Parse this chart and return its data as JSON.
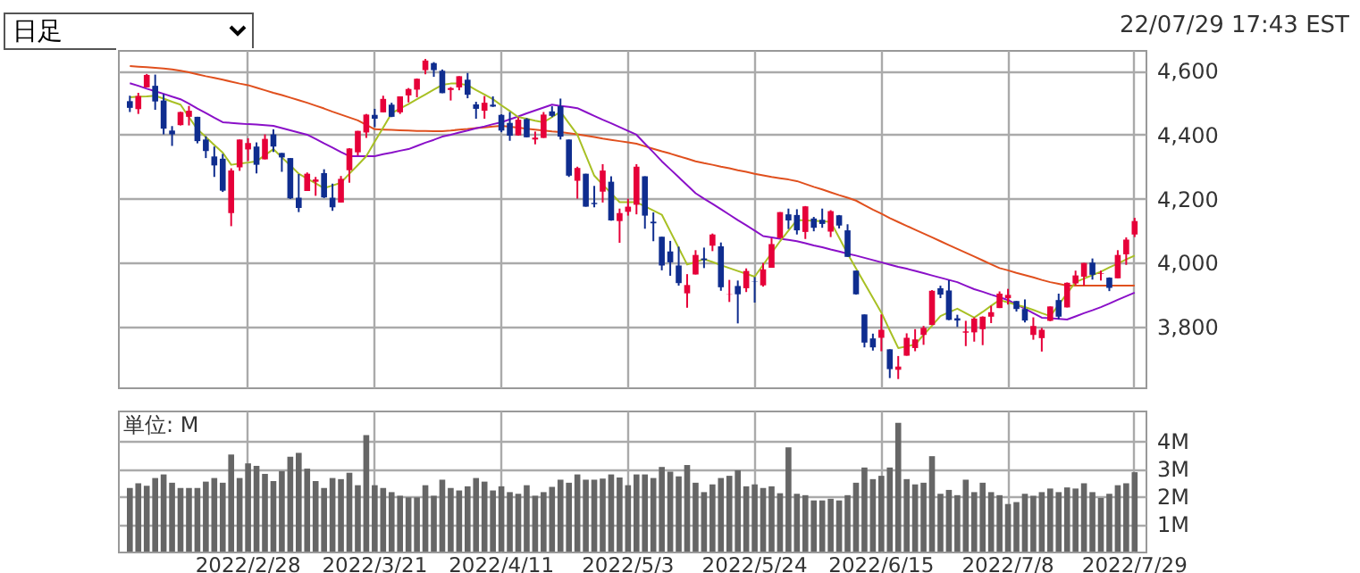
{
  "chart_data": [
    {
      "type": "candlestick",
      "categories": [
        null,
        null,
        null,
        null,
        null,
        null,
        null,
        null,
        null,
        null,
        null,
        null,
        null,
        null,
        "2022/2/28",
        null,
        null,
        null,
        null,
        null,
        null,
        null,
        null,
        null,
        null,
        null,
        null,
        null,
        null,
        "2022/3/21",
        null,
        null,
        null,
        null,
        null,
        null,
        null,
        null,
        null,
        null,
        null,
        null,
        null,
        null,
        "2022/4/11",
        null,
        null,
        null,
        null,
        null,
        null,
        null,
        null,
        null,
        null,
        null,
        null,
        null,
        null,
        "2022/5/3",
        null,
        null,
        null,
        null,
        null,
        null,
        null,
        null,
        null,
        null,
        null,
        null,
        null,
        null,
        "2022/5/24",
        null,
        null,
        null,
        null,
        null,
        null,
        null,
        null,
        null,
        null,
        null,
        null,
        null,
        null,
        "2022/6/15",
        null,
        null,
        null,
        null,
        null,
        null,
        null,
        null,
        null,
        null,
        null,
        null,
        null,
        null,
        "2022/7/8",
        null,
        null,
        null,
        null,
        null,
        null,
        null,
        null,
        null,
        null,
        null,
        null,
        null,
        null,
        "2022/7/29"
      ],
      "ohlc": [
        [
          4505,
          4522,
          4471,
          4484
        ],
        [
          4480,
          4531,
          4465,
          4521
        ],
        [
          4548,
          4590,
          4548,
          4587
        ],
        [
          4553,
          4588,
          4478,
          4504
        ],
        [
          4507,
          4527,
          4401,
          4419
        ],
        [
          4413,
          4427,
          4365,
          4401
        ],
        [
          4430,
          4472,
          4429,
          4471
        ],
        [
          4456,
          4490,
          4429,
          4475
        ],
        [
          4456,
          4456,
          4373,
          4380
        ],
        [
          4385,
          4395,
          4327,
          4349
        ],
        [
          4332,
          4363,
          4268,
          4304
        ],
        [
          4325,
          4340,
          4221,
          4225
        ],
        [
          4155,
          4295,
          4114,
          4288
        ],
        [
          4298,
          4385,
          4287,
          4385
        ],
        [
          4354,
          4389,
          4318,
          4374
        ],
        [
          4363,
          4376,
          4279,
          4306
        ],
        [
          4323,
          4401,
          4323,
          4387
        ],
        [
          4401,
          4417,
          4346,
          4363
        ],
        [
          4343,
          4343,
          4284,
          4329
        ],
        [
          4327,
          4327,
          4199,
          4201
        ],
        [
          4203,
          4277,
          4158,
          4171
        ],
        [
          4224,
          4282,
          4224,
          4278
        ],
        [
          4253,
          4268,
          4209,
          4260
        ],
        [
          4280,
          4292,
          4202,
          4204
        ],
        [
          4203,
          4247,
          4162,
          4173
        ],
        [
          4188,
          4271,
          4188,
          4262
        ],
        [
          4289,
          4358,
          4250,
          4357
        ],
        [
          4345,
          4412,
          4335,
          4412
        ],
        [
          4407,
          4465,
          4390,
          4463
        ],
        [
          4462,
          4481,
          4424,
          4450
        ],
        [
          4470,
          4522,
          4470,
          4512
        ],
        [
          4494,
          4500,
          4455,
          4456
        ],
        [
          4470,
          4520,
          4465,
          4520
        ],
        [
          4523,
          4546,
          4501,
          4543
        ],
        [
          4541,
          4576,
          4517,
          4575
        ],
        [
          4602,
          4637,
          4589,
          4632
        ],
        [
          4624,
          4627,
          4581,
          4602
        ],
        [
          4600,
          4604,
          4530,
          4530
        ],
        [
          4540,
          4549,
          4507,
          4546
        ],
        [
          4548,
          4583,
          4539,
          4583
        ],
        [
          4572,
          4593,
          4514,
          4525
        ],
        [
          4495,
          4503,
          4450,
          4481
        ],
        [
          4475,
          4521,
          4450,
          4500
        ],
        [
          4494,
          4520,
          4487,
          4488
        ],
        [
          4462,
          4464,
          4408,
          4413
        ],
        [
          4437,
          4471,
          4381,
          4397
        ],
        [
          4398,
          4454,
          4397,
          4447
        ],
        [
          4449,
          4452,
          4392,
          4392
        ],
        [
          4385,
          4410,
          4370,
          4391
        ],
        [
          4390,
          4471,
          4390,
          4463
        ],
        [
          4473,
          4489,
          4455,
          4459
        ],
        [
          4489,
          4513,
          4385,
          4394
        ],
        [
          4385,
          4385,
          4268,
          4272
        ],
        [
          4256,
          4300,
          4200,
          4296
        ],
        [
          4278,
          4278,
          4175,
          4175
        ],
        [
          4187,
          4240,
          4173,
          4183
        ],
        [
          4222,
          4308,
          4188,
          4288
        ],
        [
          4253,
          4270,
          4131,
          4132
        ],
        [
          4130,
          4169,
          4062,
          4155
        ],
        [
          4159,
          4200,
          4147,
          4175
        ],
        [
          4181,
          4308,
          4151,
          4300
        ],
        [
          4270,
          4270,
          4106,
          4147
        ],
        [
          4128,
          4157,
          4067,
          4123
        ],
        [
          4081,
          4081,
          3976,
          3991
        ],
        [
          4035,
          4068,
          3959,
          4001
        ],
        [
          3991,
          4050,
          3928,
          3936
        ],
        [
          3904,
          3964,
          3859,
          3930
        ],
        [
          3963,
          4039,
          3963,
          4024
        ],
        [
          4013,
          4047,
          3983,
          4008
        ],
        [
          4053,
          4091,
          4036,
          4088
        ],
        [
          4051,
          4063,
          3912,
          3923
        ],
        [
          3900,
          3946,
          3877,
          3901
        ],
        [
          3927,
          3944,
          3810,
          3901
        ],
        [
          3920,
          3982,
          3908,
          3974
        ],
        [
          3942,
          3955,
          3875,
          3941
        ],
        [
          3929,
          3999,
          3925,
          3979
        ],
        [
          3984,
          4076,
          3984,
          4058
        ],
        [
          4077,
          4158,
          4077,
          4158
        ],
        [
          4151,
          4169,
          4105,
          4132
        ],
        [
          4149,
          4167,
          4088,
          4101
        ],
        [
          4096,
          4177,
          4074,
          4176
        ],
        [
          4138,
          4143,
          4098,
          4109
        ],
        [
          4134,
          4169,
          4109,
          4121
        ],
        [
          4097,
          4164,
          4080,
          4161
        ],
        [
          4148,
          4149,
          4107,
          4116
        ],
        [
          4101,
          4120,
          4018,
          4018
        ],
        [
          3975,
          3975,
          3900,
          3901
        ],
        [
          3838,
          3838,
          3735,
          3750
        ],
        [
          3763,
          3778,
          3725,
          3735
        ],
        [
          3765,
          3838,
          3723,
          3790
        ],
        [
          3729,
          3729,
          3639,
          3667
        ],
        [
          3665,
          3708,
          3636,
          3675
        ],
        [
          3709,
          3779,
          3709,
          3765
        ],
        [
          3733,
          3792,
          3723,
          3760
        ],
        [
          3774,
          3802,
          3743,
          3796
        ],
        [
          3805,
          3914,
          3805,
          3912
        ],
        [
          3920,
          3928,
          3889,
          3900
        ],
        [
          3913,
          3945,
          3820,
          3821
        ],
        [
          3826,
          3837,
          3799,
          3819
        ],
        [
          3781,
          3818,
          3739,
          3785
        ],
        [
          3782,
          3829,
          3753,
          3825
        ],
        [
          3792,
          3832,
          3742,
          3831
        ],
        [
          3831,
          3865,
          3811,
          3845
        ],
        [
          3858,
          3910,
          3858,
          3903
        ],
        [
          3889,
          3918,
          3869,
          3899
        ],
        [
          3880,
          3880,
          3847,
          3855
        ],
        [
          3855,
          3885,
          3813,
          3819
        ],
        [
          3774,
          3829,
          3759,
          3802
        ],
        [
          3764,
          3796,
          3722,
          3790
        ],
        [
          3818,
          3863,
          3817,
          3863
        ],
        [
          3883,
          3903,
          3823,
          3831
        ],
        [
          3860,
          3938,
          3860,
          3937
        ],
        [
          3935,
          3975,
          3930,
          3960
        ],
        [
          3956,
          3999,
          3928,
          3999
        ],
        [
          4000,
          4013,
          3947,
          3962
        ],
        [
          3965,
          3975,
          3944,
          3967
        ],
        [
          3953,
          3954,
          3911,
          3921
        ],
        [
          3951,
          4039,
          3951,
          4024
        ],
        [
          4026,
          4079,
          3993,
          4072
        ],
        [
          4088,
          4140,
          4080,
          4130
        ]
      ],
      "colors": [
        "#0f2d8f",
        "#e60039",
        "#e60039",
        "#0f2d8f",
        "#0f2d8f",
        "#0f2d8f",
        "#e60039",
        "#e60039",
        "#0f2d8f",
        "#0f2d8f",
        "#0f2d8f",
        "#0f2d8f",
        "#e60039",
        "#e60039",
        "#e60039",
        "#0f2d8f",
        "#e60039",
        "#0f2d8f",
        "#0f2d8f",
        "#0f2d8f",
        "#0f2d8f",
        "#e60039",
        "#e60039",
        "#0f2d8f",
        "#0f2d8f",
        "#e60039",
        "#e60039",
        "#e60039",
        "#e60039",
        "#0f2d8f",
        "#e60039",
        "#0f2d8f",
        "#e60039",
        "#e60039",
        "#e60039",
        "#e60039",
        "#0f2d8f",
        "#0f2d8f",
        "#e60039",
        "#e60039",
        "#0f2d8f",
        "#0f2d8f",
        "#e60039",
        "#0f2d8f",
        "#0f2d8f",
        "#0f2d8f",
        "#e60039",
        "#0f2d8f",
        "#e60039",
        "#e60039",
        "#0f2d8f",
        "#0f2d8f",
        "#0f2d8f",
        "#e60039",
        "#0f2d8f",
        "#0f2d8f",
        "#e60039",
        "#0f2d8f",
        "#e60039",
        "#e60039",
        "#e60039",
        "#0f2d8f",
        "#0f2d8f",
        "#0f2d8f",
        "#0f2d8f",
        "#0f2d8f",
        "#e60039",
        "#e60039",
        "#0f2d8f",
        "#e60039",
        "#0f2d8f",
        "#e60039",
        "#0f2d8f",
        "#e60039",
        "#0f2d8f",
        "#e60039",
        "#e60039",
        "#e60039",
        "#0f2d8f",
        "#0f2d8f",
        "#e60039",
        "#0f2d8f",
        "#0f2d8f",
        "#e60039",
        "#0f2d8f",
        "#0f2d8f",
        "#0f2d8f",
        "#0f2d8f",
        "#0f2d8f",
        "#e60039",
        "#0f2d8f",
        "#e60039",
        "#e60039",
        "#e60039",
        "#e60039",
        "#e60039",
        "#0f2d8f",
        "#0f2d8f",
        "#0f2d8f",
        "#e60039",
        "#e60039",
        "#e60039",
        "#e60039",
        "#e60039",
        "#e60039",
        "#0f2d8f",
        "#0f2d8f",
        "#e60039",
        "#e60039",
        "#e60039",
        "#0f2d8f",
        "#e60039",
        "#e60039",
        "#e60039",
        "#0f2d8f",
        "#e60039",
        "#0f2d8f",
        "#e60039",
        "#e60039",
        "#e60039"
      ],
      "series": [
        {
          "type": "line",
          "color": "#e0501e",
          "values": [
            4615,
            4613,
            4611,
            4609,
            4607,
            4604,
            4600,
            4595,
            4589,
            4583,
            4578,
            4572,
            4566,
            4560,
            4555,
            4547,
            4539,
            4531,
            4524,
            4516,
            4508,
            4500,
            4491,
            4482,
            4472,
            4463,
            4454,
            4445,
            4431,
            4417,
            4416,
            4415,
            4414,
            4413,
            4412,
            4412,
            4411,
            4411,
            4413,
            4416,
            4418,
            4421,
            4423,
            4426,
            4428,
            4425,
            4422,
            4419,
            4416,
            4413,
            4410,
            4408,
            4405,
            4401,
            4397,
            4393,
            4388,
            4384,
            4380,
            4376,
            4372,
            4364,
            4356,
            4348,
            4341,
            4333,
            4325,
            4317,
            4311,
            4306,
            4300,
            4295,
            4289,
            4284,
            4278,
            4273,
            4268,
            4264,
            4260,
            4255,
            4246,
            4237,
            4229,
            4220,
            4211,
            4203,
            4194,
            4180,
            4166,
            4153,
            4139,
            4127,
            4115,
            4103,
            4091,
            4079,
            4067,
            4055,
            4043,
            4031,
            4019,
            4007,
            3995,
            3983,
            3976,
            3968,
            3961,
            3954,
            3946,
            3939,
            3934,
            3928,
            3928,
            3928,
            3928,
            3928,
            3928,
            3928,
            3928,
            3928
          ]
        },
        {
          "type": "line",
          "color": "#8a10c8",
          "values": [
            4561,
            4553,
            4544,
            4536,
            4528,
            4519,
            4511,
            4497,
            4482,
            4468,
            4453,
            4439,
            4437,
            4435,
            4433,
            4432,
            4430,
            4428,
            4421,
            4414,
            4407,
            4400,
            4387,
            4373,
            4360,
            4346,
            4333,
            4333,
            4333,
            4333,
            4339,
            4344,
            4350,
            4355,
            4365,
            4375,
            4384,
            4394,
            4400,
            4407,
            4413,
            4420,
            4426,
            4433,
            4439,
            4448,
            4457,
            4467,
            4476,
            4485,
            4494,
            4490,
            4487,
            4483,
            4471,
            4459,
            4447,
            4436,
            4424,
            4412,
            4400,
            4372,
            4345,
            4317,
            4292,
            4267,
            4242,
            4217,
            4200,
            4184,
            4167,
            4150,
            4133,
            4117,
            4100,
            4083,
            4079,
            4075,
            4071,
            4067,
            4061,
            4054,
            4048,
            4041,
            4035,
            4028,
            4022,
            4015,
            4008,
            4001,
            3994,
            3987,
            3981,
            3974,
            3967,
            3960,
            3953,
            3946,
            3939,
            3928,
            3917,
            3909,
            3900,
            3892,
            3883,
            3869,
            3856,
            3842,
            3828,
            3826,
            3824,
            3822,
            3832,
            3842,
            3851,
            3861,
            3872,
            3884,
            3895,
            3906
          ]
        },
        {
          "type": "line",
          "color": "#a8c024",
          "values": [
            4517,
            4519,
            4520,
            4522,
            4513,
            4503,
            4494,
            4455,
            4417,
            4393,
            4368,
            4344,
            4306,
            4310,
            4313,
            4317,
            4336,
            4355,
            4329,
            4304,
            4278,
            4263,
            4248,
            4233,
            4241,
            4250,
            4278,
            4305,
            4333,
            4378,
            4422,
            4467,
            4482,
            4496,
            4511,
            4526,
            4541,
            4556,
            4560,
            4560,
            4555,
            4540,
            4526,
            4511,
            4492,
            4474,
            4455,
            4450,
            4444,
            4439,
            4455,
            4472,
            4436,
            4400,
            4336,
            4272,
            4244,
            4217,
            4189,
            4189,
            4189,
            4176,
            4163,
            4150,
            4098,
            4046,
            3994,
            4002,
            4011,
            4002,
            3992,
            3983,
            3974,
            3965,
            3956,
            3993,
            4030,
            4067,
            4100,
            4133,
            4132,
            4131,
            4129,
            4128,
            4078,
            4028,
            3982,
            3936,
            3890,
            3844,
            3788,
            3733,
            3738,
            3744,
            3774,
            3803,
            3833,
            3845,
            3856,
            3842,
            3828,
            3846,
            3865,
            3883,
            3876,
            3868,
            3861,
            3852,
            3842,
            3833,
            3868,
            3904,
            3939,
            3950,
            3961,
            3972,
            3985,
            3997,
            4010,
            4022
          ]
        }
      ],
      "ylim": [
        3610,
        4665
      ],
      "yticks": [
        {
          "value": 3800,
          "label": "3,800"
        },
        {
          "value": 4000,
          "label": "4,000"
        },
        {
          "value": 4200,
          "label": "4,200"
        },
        {
          "value": 4400,
          "label": "4,400"
        },
        {
          "value": 4600,
          "label": "4,600"
        }
      ],
      "grid": true,
      "tick_labels": "y",
      "annotations": [
        "日足",
        "22/07/29 17:43 EST"
      ]
    },
    {
      "type": "bar",
      "categories": [
        null,
        null,
        null,
        null,
        null,
        null,
        null,
        null,
        null,
        null,
        null,
        null,
        null,
        null,
        "2022/2/28",
        null,
        null,
        null,
        null,
        null,
        null,
        null,
        null,
        null,
        null,
        null,
        null,
        null,
        null,
        "2022/3/21",
        null,
        null,
        null,
        null,
        null,
        null,
        null,
        null,
        null,
        null,
        null,
        null,
        null,
        null,
        "2022/4/11",
        null,
        null,
        null,
        null,
        null,
        null,
        null,
        null,
        null,
        null,
        null,
        null,
        null,
        null,
        "2022/5/3",
        null,
        null,
        null,
        null,
        null,
        null,
        null,
        null,
        null,
        null,
        null,
        null,
        null,
        null,
        "2022/5/24",
        null,
        null,
        null,
        null,
        null,
        null,
        null,
        null,
        null,
        null,
        null,
        null,
        null,
        null,
        "2022/6/15",
        null,
        null,
        null,
        null,
        null,
        null,
        null,
        null,
        null,
        null,
        null,
        null,
        null,
        null,
        "2022/7/8",
        null,
        null,
        null,
        null,
        null,
        null,
        null,
        null,
        null,
        null,
        null,
        null,
        null,
        null,
        "2022/7/29"
      ],
      "values": [
        2.3,
        2.47,
        2.38,
        2.66,
        2.79,
        2.49,
        2.3,
        2.3,
        2.3,
        2.53,
        2.66,
        2.49,
        3.51,
        2.66,
        3.19,
        3.1,
        2.81,
        2.55,
        2.91,
        3.43,
        3.57,
        3.0,
        2.55,
        2.3,
        2.66,
        2.62,
        2.85,
        2.4,
        4.21,
        2.4,
        2.3,
        2.15,
        2.02,
        1.96,
        1.96,
        2.4,
        2.02,
        2.6,
        2.3,
        2.21,
        2.36,
        2.66,
        2.53,
        2.21,
        2.36,
        2.15,
        2.09,
        2.4,
        2.02,
        2.15,
        2.34,
        2.6,
        2.49,
        2.79,
        2.6,
        2.6,
        2.64,
        2.79,
        2.68,
        2.4,
        2.79,
        2.79,
        2.66,
        3.06,
        2.89,
        2.72,
        3.13,
        2.49,
        2.15,
        2.43,
        2.66,
        2.74,
        2.94,
        2.36,
        2.43,
        2.3,
        2.36,
        2.11,
        3.77,
        2.09,
        2.04,
        1.85,
        1.85,
        1.91,
        1.85,
        2.04,
        2.49,
        3.04,
        2.62,
        2.74,
        3.04,
        4.66,
        2.62,
        2.43,
        2.49,
        3.45,
        2.09,
        2.23,
        2.04,
        2.6,
        2.15,
        2.49,
        2.15,
        2.04,
        1.72,
        1.79,
        2.09,
        2.02,
        2.15,
        2.28,
        2.15,
        2.32,
        2.28,
        2.47,
        2.15,
        1.94,
        2.09,
        2.4,
        2.47,
        2.87
      ],
      "color": "#666666",
      "ylabel": "単位: M",
      "ylim": [
        0,
        5.1
      ],
      "yticks": [
        {
          "value": 1,
          "label": "1M"
        },
        {
          "value": 2,
          "label": "2M"
        },
        {
          "value": 3,
          "label": "3M"
        },
        {
          "value": 4,
          "label": "4M"
        }
      ],
      "grid": true
    }
  ]
}
